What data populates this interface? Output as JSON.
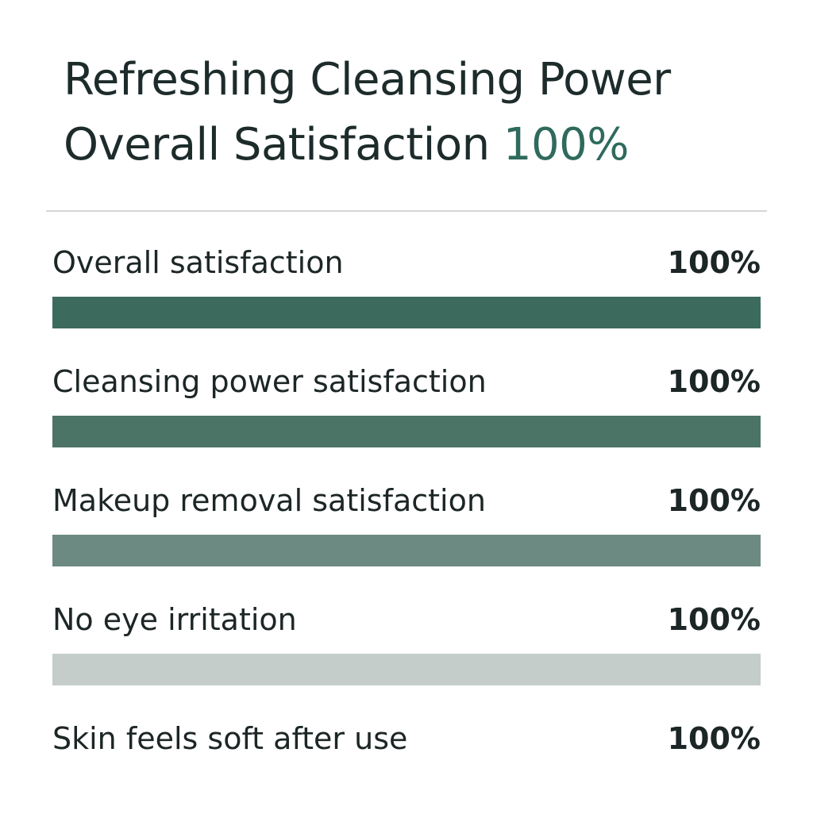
{
  "header": {
    "title_line1": "Refreshing Cleansing Power",
    "title_line2_prefix": "Overall Satisfaction",
    "title_line2_value": "100%"
  },
  "colors": {
    "accent": "#2f6a5d",
    "bar_1": "#3c6b5e",
    "bar_2": "#4b7366",
    "bar_3": "#6c8a81",
    "bar_4": "#c4cdca"
  },
  "chart_data": {
    "type": "bar",
    "orientation": "horizontal",
    "categories": [
      "Overall satisfaction",
      "Cleansing power satisfaction",
      "Makeup removal satisfaction",
      "No eye irritation",
      "Skin feels soft after use"
    ],
    "values": [
      100,
      100,
      100,
      100,
      100
    ],
    "value_labels": [
      "100%",
      "100%",
      "100%",
      "100%",
      "100%"
    ],
    "unit": "%",
    "xlim": [
      0,
      100
    ],
    "bars_shown": [
      true,
      true,
      true,
      true,
      false
    ],
    "title": "Refreshing Cleansing Power",
    "xlabel": "",
    "ylabel": "",
    "grid": false,
    "legend": "none"
  }
}
